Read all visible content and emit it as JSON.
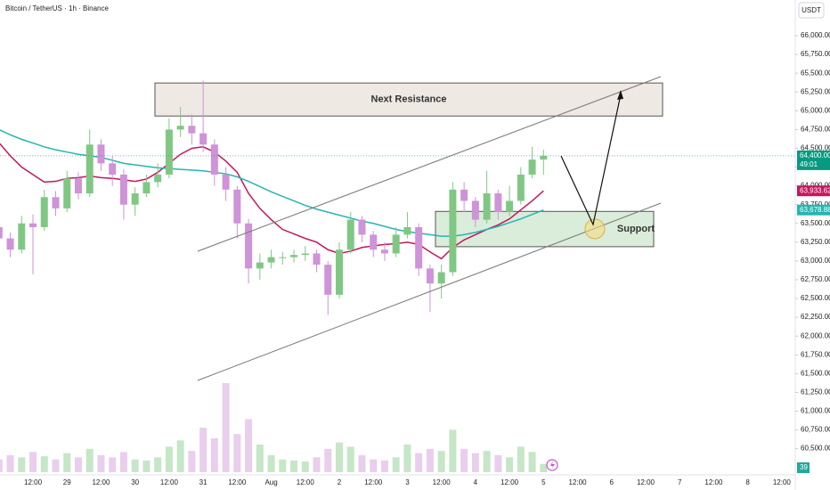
{
  "chart_data": {
    "type": "candlestick",
    "title": "Bitcoin / TetherUS · 1h · Binance",
    "currency": "USDT",
    "categories": [
      null,
      null,
      null,
      "12:00",
      null,
      null,
      "29",
      null,
      null,
      "12:00",
      null,
      null,
      "30",
      null,
      null,
      "12:00",
      null,
      null,
      "31",
      null,
      null,
      "12:00",
      null,
      null,
      "Aug",
      null,
      null,
      "12:00",
      null,
      null,
      "2",
      null,
      null,
      "12:00",
      null,
      null,
      "3",
      null,
      null,
      "12:00",
      null,
      null,
      "4",
      null,
      null,
      "12:00",
      null,
      null,
      "5",
      null,
      null,
      "12:00",
      null,
      null,
      "6",
      null,
      null,
      "12:00",
      null,
      null,
      "7",
      null,
      null,
      "12:00",
      null,
      null,
      "8",
      null,
      null,
      "12:00"
    ],
    "open": [
      63450,
      63300,
      63150,
      63500,
      63450,
      63850,
      63700,
      64100,
      63900,
      64550,
      64300,
      64150,
      63750,
      63900,
      64050,
      64150,
      64750,
      64800,
      64700,
      64550,
      64150,
      63950,
      63500,
      62900,
      62980,
      63050,
      63050,
      63080,
      63100,
      62950,
      62550,
      63150,
      63550,
      63350,
      63150,
      63100,
      63350,
      63450,
      62900,
      62700,
      62850,
      63950,
      63800,
      63550,
      63900,
      63650,
      63800,
      64150,
      64350,
      null,
      null,
      null,
      null,
      null,
      null,
      null,
      null,
      null,
      null,
      null,
      null,
      null,
      null,
      null,
      null,
      null,
      null,
      null,
      null,
      null
    ],
    "high": [
      63520,
      63380,
      63600,
      63620,
      63950,
      63930,
      64200,
      64180,
      64750,
      64620,
      64400,
      64220,
      63980,
      64150,
      64300,
      64900,
      65050,
      64950,
      65400,
      64620,
      64250,
      64000,
      63560,
      63100,
      63150,
      63120,
      63150,
      63200,
      63150,
      63000,
      63250,
      63650,
      63600,
      63400,
      63250,
      63450,
      63650,
      63500,
      62950,
      62950,
      64050,
      64050,
      63850,
      64200,
      63950,
      64000,
      64250,
      64520,
      64480,
      null,
      null,
      null,
      null,
      null,
      null,
      null,
      null,
      null,
      null,
      null,
      null,
      null,
      null,
      null,
      null,
      null,
      null,
      null,
      null,
      null
    ],
    "low": [
      63200,
      63050,
      63100,
      62820,
      63400,
      63600,
      63650,
      63820,
      63850,
      64200,
      64000,
      63550,
      63600,
      63850,
      63980,
      64100,
      64650,
      64550,
      64450,
      64000,
      63800,
      63300,
      62700,
      62750,
      62900,
      62950,
      62980,
      63000,
      62850,
      62280,
      62500,
      63100,
      63250,
      63050,
      63000,
      63050,
      63300,
      62800,
      62320,
      62500,
      62800,
      63650,
      63450,
      63500,
      63550,
      63600,
      63750,
      64100,
      64150,
      null,
      null,
      null,
      null,
      null,
      null,
      null,
      null,
      null,
      null,
      null,
      null,
      null,
      null,
      null,
      null,
      null,
      null,
      null,
      null,
      null
    ],
    "close": [
      63300,
      63150,
      63500,
      63450,
      63850,
      63700,
      64100,
      63900,
      64550,
      64300,
      64150,
      63750,
      63900,
      64050,
      64150,
      64750,
      64800,
      64700,
      64550,
      64150,
      63950,
      63500,
      62900,
      62980,
      63050,
      63050,
      63080,
      63100,
      62950,
      62550,
      63150,
      63550,
      63350,
      63150,
      63100,
      63350,
      63450,
      62900,
      62700,
      62850,
      63950,
      63800,
      63550,
      63900,
      63650,
      63800,
      64150,
      64350,
      64400,
      null,
      null,
      null,
      null,
      null,
      null,
      null,
      null,
      null,
      null,
      null,
      null,
      null,
      null,
      null,
      null,
      null,
      null,
      null,
      null,
      null
    ],
    "volume": [
      60,
      80,
      70,
      95,
      75,
      60,
      90,
      70,
      110,
      80,
      70,
      95,
      60,
      55,
      70,
      120,
      150,
      100,
      210,
      160,
      420,
      180,
      250,
      130,
      80,
      60,
      55,
      50,
      70,
      110,
      140,
      120,
      80,
      60,
      55,
      70,
      130,
      90,
      110,
      100,
      200,
      110,
      90,
      100,
      80,
      70,
      120,
      95,
      39,
      null,
      null,
      null,
      null,
      null,
      null,
      null,
      null,
      null,
      null,
      null,
      null,
      null,
      null,
      null,
      null,
      null,
      null,
      null,
      null,
      null
    ],
    "volume_label": "39",
    "up_color": "#81c784",
    "down_color": "#ce93d8",
    "moving_averages": [
      {
        "color": "#c2185b",
        "last_label": "63,933.62",
        "values": [
          64575,
          64400,
          64250,
          64150,
          64050,
          64060,
          64100,
          64110,
          64130,
          64110,
          64100,
          64080,
          64060,
          64090,
          64180,
          64300,
          64420,
          64500,
          64520,
          64450,
          64330,
          64180,
          63900,
          63700,
          63550,
          63420,
          63360,
          63300,
          63250,
          63150,
          63100,
          63130,
          63180,
          63200,
          63220,
          63230,
          63250,
          63220,
          63120,
          63030,
          63180,
          63280,
          63350,
          63420,
          63480,
          63560,
          63680,
          63800,
          63933.62,
          null,
          null,
          null,
          null,
          null,
          null,
          null,
          null,
          null,
          null,
          null,
          null,
          null,
          null,
          null,
          null,
          null,
          null,
          null,
          null,
          null
        ]
      },
      {
        "color": "#26b5b0",
        "last_label": "63,678.88",
        "values": [
          64750,
          64680,
          64620,
          64570,
          64520,
          64480,
          64450,
          64420,
          64400,
          64380,
          64340,
          64300,
          64280,
          64260,
          64240,
          64230,
          64220,
          64210,
          64200,
          64180,
          64160,
          64120,
          64060,
          63990,
          63920,
          63860,
          63800,
          63740,
          63690,
          63650,
          63610,
          63570,
          63530,
          63500,
          63460,
          63420,
          63390,
          63370,
          63350,
          63330,
          63330,
          63350,
          63380,
          63420,
          63460,
          63510,
          63560,
          63620,
          63678.88,
          null,
          null,
          null,
          null,
          null,
          null,
          null,
          null,
          null,
          null,
          null,
          null,
          null,
          null,
          null,
          null,
          null,
          null,
          null,
          null,
          null
        ]
      }
    ],
    "last_price": {
      "value": 64400,
      "label": "64,400.00",
      "countdown": "49:01",
      "color": "#089981"
    },
    "annotations": {
      "resistance": {
        "label": "Next Resistance",
        "range": [
          64930,
          65370
        ]
      },
      "support": {
        "label": "Support",
        "range": [
          63190,
          63660
        ]
      }
    },
    "ylim": [
      59950,
      66475
    ],
    "yticks": [
      {
        "value": 66000,
        "label": "66,000.00"
      },
      {
        "value": 65750,
        "label": "65,750.00"
      },
      {
        "value": 65500,
        "label": "65,500.00"
      },
      {
        "value": 65250,
        "label": "65,250.00"
      },
      {
        "value": 65000,
        "label": "65,000.00"
      },
      {
        "value": 64750,
        "label": "64,750.00"
      },
      {
        "value": 64500,
        "label": "64,500.00"
      },
      {
        "value": 64250,
        "label": "64,250.00"
      },
      {
        "value": 64000,
        "label": "64,000.00"
      },
      {
        "value": 63750,
        "label": "63,750.00"
      },
      {
        "value": 63500,
        "label": "63,500.00"
      },
      {
        "value": 63250,
        "label": "63,250.00"
      },
      {
        "value": 63000,
        "label": "63,000.00"
      },
      {
        "value": 62750,
        "label": "62,750.00"
      },
      {
        "value": 62500,
        "label": "62,500.00"
      },
      {
        "value": 62250,
        "label": "62,250.00"
      },
      {
        "value": 62000,
        "label": "62,000.00"
      },
      {
        "value": 61750,
        "label": "61,750.00"
      },
      {
        "value": 61500,
        "label": "61,500.00"
      },
      {
        "value": 61250,
        "label": "61,250.00"
      },
      {
        "value": 61000,
        "label": "61,000.00"
      },
      {
        "value": 60750,
        "label": "60,750.00"
      },
      {
        "value": 60500,
        "label": "60,500.00"
      }
    ]
  }
}
